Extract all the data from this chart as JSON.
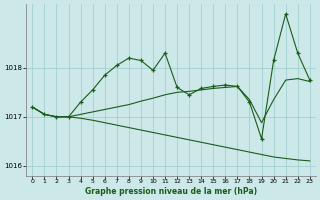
{
  "title": "Graphe pression niveau de la mer (hPa)",
  "background_color": "#cce8e8",
  "line_color": "#1a5c1a",
  "grid_color": "#99cccc",
  "ylim": [
    1015.8,
    1019.3
  ],
  "xlim": [
    -0.5,
    23.5
  ],
  "yticks": [
    1016,
    1017,
    1018
  ],
  "xticks": [
    0,
    1,
    2,
    3,
    4,
    5,
    6,
    7,
    8,
    9,
    10,
    11,
    12,
    13,
    14,
    15,
    16,
    17,
    18,
    19,
    20,
    21,
    22,
    23
  ],
  "series1": [
    1017.2,
    1017.05,
    1017.0,
    1017.0,
    1017.3,
    1017.55,
    1017.85,
    1018.05,
    1018.2,
    1018.15,
    1017.95,
    1018.3,
    1017.6,
    1017.45,
    1017.58,
    1017.62,
    1017.65,
    1017.62,
    1017.3,
    1016.55,
    1018.15,
    1019.1,
    1018.3,
    1017.75
  ],
  "series2": [
    1017.2,
    1017.05,
    1017.0,
    1017.0,
    1017.05,
    1017.1,
    1017.15,
    1017.2,
    1017.25,
    1017.32,
    1017.38,
    1017.45,
    1017.5,
    1017.52,
    1017.55,
    1017.58,
    1017.6,
    1017.62,
    1017.35,
    1016.88,
    1017.35,
    1017.75,
    1017.78,
    1017.72
  ],
  "series3": [
    1017.2,
    1017.05,
    1017.0,
    1017.0,
    1016.97,
    1016.93,
    1016.88,
    1016.83,
    1016.78,
    1016.73,
    1016.68,
    1016.63,
    1016.58,
    1016.53,
    1016.48,
    1016.43,
    1016.38,
    1016.33,
    1016.28,
    1016.23,
    1016.18,
    1016.15,
    1016.12,
    1016.1
  ]
}
